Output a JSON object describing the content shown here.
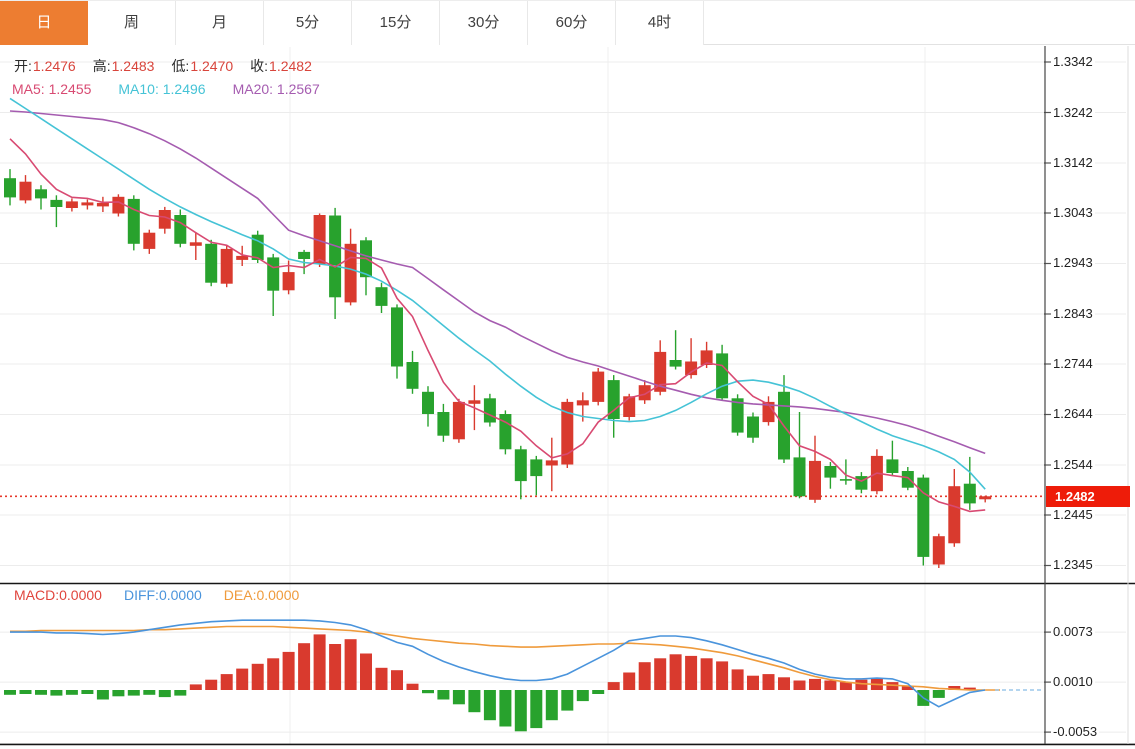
{
  "tabs": [
    {
      "label": "日",
      "active": true
    },
    {
      "label": "周",
      "active": false
    },
    {
      "label": "月",
      "active": false
    },
    {
      "label": "5分",
      "active": false
    },
    {
      "label": "15分",
      "active": false
    },
    {
      "label": "30分",
      "active": false
    },
    {
      "label": "60分",
      "active": false
    },
    {
      "label": "4时",
      "active": false
    }
  ],
  "ohlc_header": {
    "open_label": "开:",
    "open_value": "1.2476",
    "high_label": "高:",
    "high_value": "1.2483",
    "low_label": "低:",
    "low_value": "1.2470",
    "close_label": "收:",
    "close_value": "1.2482"
  },
  "ma_header": {
    "ma5": "MA5: 1.2455",
    "ma10": "MA10: 1.2496",
    "ma20": "MA20: 1.2567"
  },
  "macd_header": {
    "macd_label": "MACD:",
    "macd_value": "0.0000",
    "diff_label": "DIFF:",
    "diff_value": "0.0000",
    "dea_label": "DEA:",
    "dea_value": "0.0000"
  },
  "price_axis": {
    "labels": [
      "1.3342",
      "1.3242",
      "1.3142",
      "1.3043",
      "1.2943",
      "1.2843",
      "1.2744",
      "1.2644",
      "1.2544",
      "1.2445",
      "1.2345"
    ],
    "current": "1.2482"
  },
  "macd_axis": {
    "labels": [
      "0.0073",
      "0.0010",
      "-0.0053"
    ]
  },
  "colors": {
    "accent_tab": "#ed7d31",
    "up": "#d93a2e",
    "down": "#28a22d",
    "badge": "#ee1c09",
    "ohlc_value": "#d8453c",
    "label_text": "#2a2a2a",
    "ma5": "#d84a72",
    "ma10": "#45c3d6",
    "ma20": "#a55cb0",
    "macd_label": "#e0453d",
    "diff": "#4a94dc",
    "dea": "#ef9b3c",
    "grid": "#ececec",
    "vgrid": "#efefef",
    "axis_text": "#1f1f1f",
    "current_line": "#e8392b",
    "diff_dash": "#9cc7ea",
    "separator_dark": "#161616",
    "axis_separator": "#454545"
  },
  "chart_data": {
    "type": "candlestick",
    "timeframe": "日",
    "legend": [
      "MA5",
      "MA10",
      "MA20",
      "MACD",
      "DIFF",
      "DEA"
    ],
    "up_means": "close >= open (red, Chinese convention)",
    "price_panel": {
      "ticks": [
        1.3342,
        1.3242,
        1.3142,
        1.3043,
        1.2943,
        1.2843,
        1.2744,
        1.2644,
        1.2544,
        1.2445,
        1.2345
      ],
      "current_price": 1.2482,
      "last_ohlc": {
        "open": 1.2476,
        "high": 1.2483,
        "low": 1.247,
        "close": 1.2482
      },
      "candles": [
        [
          1.3112,
          1.313,
          1.3058,
          1.3074
        ],
        [
          1.3068,
          1.3118,
          1.3062,
          1.3105
        ],
        [
          1.309,
          1.3098,
          1.305,
          1.3072
        ],
        [
          1.3069,
          1.3078,
          1.3015,
          1.3055
        ],
        [
          1.3053,
          1.3072,
          1.3046,
          1.3066
        ],
        [
          1.3058,
          1.307,
          1.305,
          1.3064
        ],
        [
          1.3056,
          1.3075,
          1.3045,
          1.3063
        ],
        [
          1.3042,
          1.308,
          1.3036,
          1.3075
        ],
        [
          1.3071,
          1.3078,
          1.2969,
          1.2982
        ],
        [
          1.2972,
          1.301,
          1.2962,
          1.3004
        ],
        [
          1.3012,
          1.3055,
          1.3002,
          1.3049
        ],
        [
          1.3039,
          1.305,
          1.2975,
          1.2982
        ],
        [
          1.2978,
          1.3005,
          1.295,
          1.2985
        ],
        [
          1.2982,
          1.299,
          1.2898,
          1.2905
        ],
        [
          1.2903,
          1.298,
          1.2896,
          1.2972
        ],
        [
          1.295,
          1.2978,
          1.2938,
          1.2958
        ],
        [
          1.3,
          1.3008,
          1.2944,
          1.295
        ],
        [
          1.2955,
          1.2962,
          1.2839,
          1.2889
        ],
        [
          1.289,
          1.2949,
          1.2882,
          1.2926
        ],
        [
          1.2966,
          1.297,
          1.2922,
          1.2952
        ],
        [
          1.2942,
          1.3042,
          1.2936,
          1.3039
        ],
        [
          1.3038,
          1.3053,
          1.2833,
          1.2876
        ],
        [
          1.2866,
          1.3012,
          1.286,
          1.2982
        ],
        [
          1.2989,
          1.2995,
          1.288,
          1.2916
        ],
        [
          1.2896,
          1.2905,
          1.2845,
          1.2859
        ],
        [
          1.2856,
          1.2862,
          1.2715,
          1.2739
        ],
        [
          1.2748,
          1.277,
          1.2685,
          1.2695
        ],
        [
          1.2689,
          1.27,
          1.262,
          1.2645
        ],
        [
          1.2649,
          1.2665,
          1.259,
          1.2602
        ],
        [
          1.2595,
          1.2675,
          1.2588,
          1.2669
        ],
        [
          1.2665,
          1.2702,
          1.2613,
          1.2672
        ],
        [
          1.2676,
          1.2685,
          1.262,
          1.2628
        ],
        [
          1.2645,
          1.2652,
          1.2565,
          1.2575
        ],
        [
          1.2575,
          1.2582,
          1.2476,
          1.2512
        ],
        [
          1.2555,
          1.2562,
          1.2484,
          1.2522
        ],
        [
          1.2543,
          1.2598,
          1.2492,
          1.2553
        ],
        [
          1.2545,
          1.2675,
          1.2538,
          1.2669
        ],
        [
          1.2662,
          1.2688,
          1.263,
          1.2672
        ],
        [
          1.2669,
          1.2736,
          1.2662,
          1.2729
        ],
        [
          1.2712,
          1.2722,
          1.2598,
          1.2635
        ],
        [
          1.2639,
          1.2685,
          1.2632,
          1.268
        ],
        [
          1.2672,
          1.2712,
          1.2665,
          1.2702
        ],
        [
          1.2689,
          1.2791,
          1.2682,
          1.2768
        ],
        [
          1.2752,
          1.2811,
          1.2733,
          1.2739
        ],
        [
          1.2722,
          1.2795,
          1.2715,
          1.2749
        ],
        [
          1.2742,
          1.2788,
          1.2736,
          1.2771
        ],
        [
          1.2765,
          1.2782,
          1.2672,
          1.2676
        ],
        [
          1.2676,
          1.2684,
          1.2602,
          1.2608
        ],
        [
          1.264,
          1.2648,
          1.2588,
          1.2598
        ],
        [
          1.2629,
          1.268,
          1.2622,
          1.2669
        ],
        [
          1.2689,
          1.2722,
          1.2548,
          1.2555
        ],
        [
          1.2559,
          1.2649,
          1.2478,
          1.2482
        ],
        [
          1.2475,
          1.2602,
          1.2469,
          1.2552
        ],
        [
          1.2542,
          1.255,
          1.2497,
          1.2519
        ],
        [
          1.2516,
          1.2555,
          1.2505,
          1.2513
        ],
        [
          1.2522,
          1.253,
          1.2488,
          1.2495
        ],
        [
          1.2492,
          1.2575,
          1.2486,
          1.2562
        ],
        [
          1.2555,
          1.2592,
          1.2522,
          1.2528
        ],
        [
          1.2532,
          1.254,
          1.2494,
          1.2499
        ],
        [
          1.2519,
          1.2525,
          1.2345,
          1.2362
        ],
        [
          1.2347,
          1.2408,
          1.234,
          1.2403
        ],
        [
          1.2389,
          1.2536,
          1.2382,
          1.2502
        ],
        [
          1.2507,
          1.256,
          1.2455,
          1.2468
        ],
        [
          1.2476,
          1.2483,
          1.247,
          1.2482
        ]
      ],
      "ma5": [
        1.319,
        1.316,
        1.312,
        1.309,
        1.3074,
        1.3072,
        1.3064,
        1.3065,
        1.305,
        1.3038,
        1.3035,
        1.3024,
        1.3004,
        1.2985,
        1.2979,
        1.296,
        1.2954,
        1.2935,
        1.2939,
        1.2935,
        1.2951,
        1.2936,
        1.2955,
        1.2953,
        1.2934,
        1.2874,
        1.2838,
        1.2771,
        1.2708,
        1.267,
        1.2657,
        1.2643,
        1.2629,
        1.2611,
        1.2582,
        1.2558,
        1.2566,
        1.2586,
        1.2629,
        1.2652,
        1.2677,
        1.2684,
        1.2703,
        1.2705,
        1.2728,
        1.2746,
        1.2741,
        1.2709,
        1.268,
        1.2664,
        1.2621,
        1.2582,
        1.2571,
        1.2555,
        1.2524,
        1.2512,
        1.2528,
        1.2523,
        1.2519,
        1.2489,
        1.2471,
        1.2462,
        1.2452,
        1.2455
      ],
      "ma10": [
        1.327,
        1.325,
        1.323,
        1.321,
        1.319,
        1.317,
        1.315,
        1.313,
        1.311,
        1.309,
        1.3072,
        1.3055,
        1.304,
        1.3026,
        1.3013,
        1.3,
        1.2988,
        1.2972,
        1.2952,
        1.2945,
        1.2942,
        1.2938,
        1.2932,
        1.2922,
        1.2908,
        1.289,
        1.287,
        1.2845,
        1.282,
        1.2795,
        1.2772,
        1.275,
        1.2724,
        1.27,
        1.2678,
        1.266,
        1.2648,
        1.264,
        1.2636,
        1.2632,
        1.263,
        1.2632,
        1.264,
        1.2652,
        1.2668,
        1.2685,
        1.27,
        1.271,
        1.2712,
        1.2708,
        1.27,
        1.269,
        1.2676,
        1.266,
        1.2645,
        1.263,
        1.2615,
        1.2602,
        1.2592,
        1.2582,
        1.257,
        1.2555,
        1.253,
        1.2496
      ],
      "ma20": [
        1.3245,
        1.3243,
        1.324,
        1.3237,
        1.3234,
        1.3231,
        1.3228,
        1.3222,
        1.3212,
        1.32,
        1.3186,
        1.317,
        1.3152,
        1.3132,
        1.3112,
        1.3092,
        1.3072,
        1.304,
        1.3009,
        1.2998,
        1.2988,
        1.2978,
        1.2968,
        1.2958,
        1.295,
        1.2942,
        1.2935,
        1.2913,
        1.2891,
        1.2869,
        1.2847,
        1.283,
        1.2817,
        1.28,
        1.2785,
        1.277,
        1.2757,
        1.2748,
        1.274,
        1.273,
        1.272,
        1.271,
        1.27,
        1.2692,
        1.2684,
        1.2677,
        1.2672,
        1.2668,
        1.2665,
        1.2663,
        1.2661,
        1.2659,
        1.2656,
        1.2652,
        1.2648,
        1.2643,
        1.2637,
        1.263,
        1.2622,
        1.2612,
        1.2601,
        1.259,
        1.2578,
        1.2567
      ]
    },
    "macd_panel": {
      "ticks": [
        0.0073,
        0.001,
        -0.0053
      ],
      "hist": [
        -0.0006,
        -0.0005,
        -0.0006,
        -0.0007,
        -0.0006,
        -0.0005,
        -0.0012,
        -0.0008,
        -0.0007,
        -0.0006,
        -0.0009,
        -0.0007,
        0.0007,
        0.0013,
        0.002,
        0.0027,
        0.0033,
        0.004,
        0.0048,
        0.0059,
        0.007,
        0.0058,
        0.0064,
        0.0046,
        0.0028,
        0.0025,
        0.0008,
        -0.0004,
        -0.0012,
        -0.0018,
        -0.0028,
        -0.0038,
        -0.0046,
        -0.0052,
        -0.0048,
        -0.0038,
        -0.0026,
        -0.0014,
        -0.0005,
        0.001,
        0.0022,
        0.0035,
        0.004,
        0.0045,
        0.0043,
        0.004,
        0.0036,
        0.0026,
        0.0018,
        0.002,
        0.0016,
        0.0012,
        0.0014,
        0.0012,
        0.001,
        0.0013,
        0.0015,
        0.001,
        0.0005,
        -0.002,
        -0.001,
        0.0005,
        0.0003,
        0.0
      ],
      "diff": [
        0.0073,
        0.0073,
        0.0073,
        0.0072,
        0.0072,
        0.0071,
        0.007,
        0.0071,
        0.0073,
        0.0076,
        0.0079,
        0.0082,
        0.0084,
        0.0086,
        0.0087,
        0.0088,
        0.0088,
        0.0088,
        0.0088,
        0.0088,
        0.0087,
        0.0085,
        0.0082,
        0.0076,
        0.0068,
        0.006,
        0.0055,
        0.0045,
        0.0036,
        0.0029,
        0.0023,
        0.0018,
        0.0014,
        0.0012,
        0.0012,
        0.0014,
        0.002,
        0.003,
        0.004,
        0.005,
        0.0062,
        0.0065,
        0.0068,
        0.0068,
        0.0066,
        0.0062,
        0.0057,
        0.0051,
        0.0045,
        0.004,
        0.0034,
        0.0026,
        0.002,
        0.0016,
        0.0014,
        0.0014,
        0.0015,
        0.0014,
        0.0008,
        -0.001,
        -0.0021,
        -0.0012,
        -0.0003,
        0.0
      ],
      "dea": [
        0.0074,
        0.0074,
        0.0075,
        0.0075,
        0.0075,
        0.0075,
        0.0075,
        0.0075,
        0.0075,
        0.0076,
        0.0076,
        0.0077,
        0.0078,
        0.0079,
        0.008,
        0.008,
        0.008,
        0.008,
        0.0079,
        0.0078,
        0.0077,
        0.0076,
        0.0075,
        0.0073,
        0.0071,
        0.0068,
        0.0065,
        0.0063,
        0.0061,
        0.0059,
        0.0058,
        0.0056,
        0.0055,
        0.0054,
        0.0054,
        0.0055,
        0.0056,
        0.0057,
        0.0058,
        0.0058,
        0.0059,
        0.0058,
        0.0057,
        0.0055,
        0.0053,
        0.005,
        0.0047,
        0.0043,
        0.0038,
        0.0033,
        0.0028,
        0.0022,
        0.0017,
        0.0013,
        0.001,
        0.0008,
        0.0007,
        0.0006,
        0.0005,
        0.0004,
        0.0002,
        0.0001,
        0.0,
        0.0
      ]
    }
  }
}
